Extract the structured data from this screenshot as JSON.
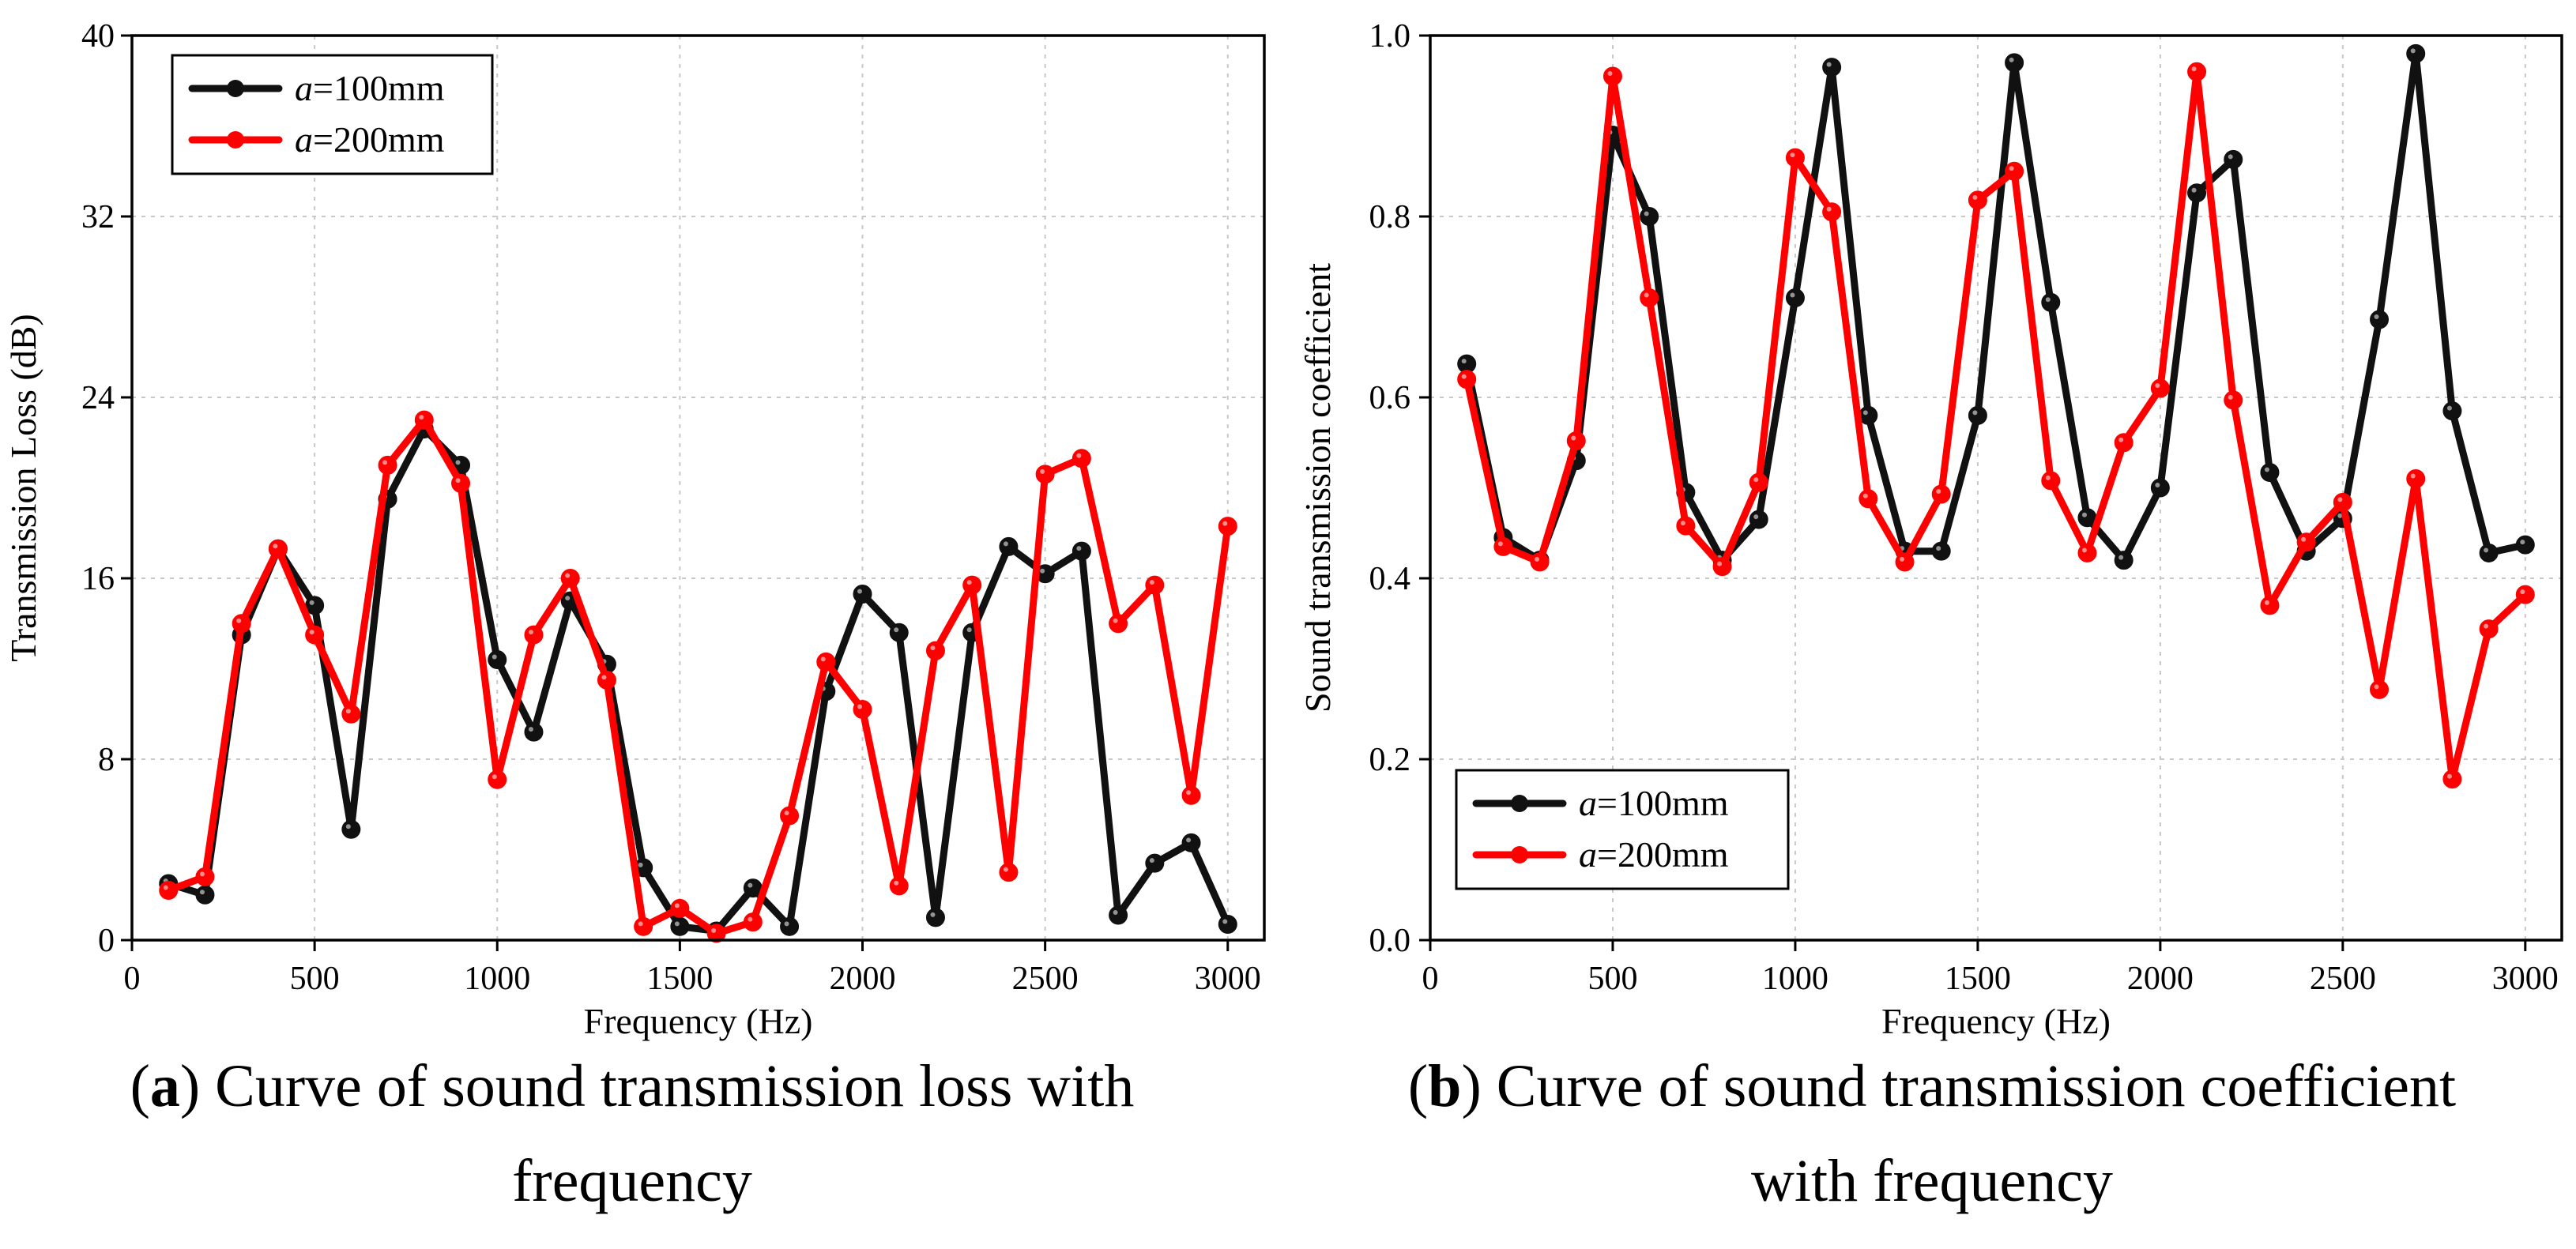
{
  "colors": {
    "series_a100": "#111111",
    "series_a200": "#ff0000"
  },
  "chart_data": [
    {
      "type": "line",
      "panel": "a",
      "caption_letter": "a",
      "caption_line1": ") Curve of sound transmission loss with",
      "caption_line2": "frequency",
      "xlabel": "Frequency (Hz)",
      "ylabel": "Transmission Loss (dB)",
      "xlim": [
        0,
        3100
      ],
      "ylim": [
        0,
        40
      ],
      "xticks": [
        0,
        500,
        1000,
        1500,
        2000,
        2500,
        3000
      ],
      "yticks": [
        0,
        8,
        16,
        24,
        32,
        40
      ],
      "grid": true,
      "legend_position": "top-left",
      "x": [
        100,
        200,
        300,
        400,
        500,
        600,
        700,
        800,
        900,
        1000,
        1100,
        1200,
        1300,
        1400,
        1500,
        1600,
        1700,
        1800,
        1900,
        2000,
        2100,
        2200,
        2300,
        2400,
        2500,
        2600,
        2700,
        2800,
        2900,
        3000
      ],
      "series": [
        {
          "name": "a=100mm",
          "name_italic": "a",
          "name_rest": "=100mm",
          "color": "#111111",
          "values": [
            2.5,
            2.0,
            13.5,
            17.3,
            14.8,
            4.9,
            19.5,
            22.6,
            21.0,
            12.4,
            9.2,
            15.0,
            12.2,
            3.2,
            0.6,
            0.4,
            2.3,
            0.6,
            11.0,
            15.3,
            13.6,
            1.0,
            13.6,
            17.4,
            16.2,
            17.2,
            1.1,
            3.4,
            4.3,
            0.7
          ]
        },
        {
          "name": "a=200mm",
          "name_italic": "a",
          "name_rest": "=200mm",
          "color": "#ff0000",
          "values": [
            2.2,
            2.8,
            14.0,
            17.3,
            13.5,
            10.0,
            21.0,
            23.0,
            20.2,
            7.1,
            13.5,
            16.0,
            11.5,
            0.6,
            1.4,
            0.3,
            0.8,
            5.5,
            12.3,
            10.2,
            2.4,
            12.8,
            15.7,
            3.0,
            20.6,
            21.3,
            14.0,
            15.7,
            6.4,
            18.3
          ]
        }
      ]
    },
    {
      "type": "line",
      "panel": "b",
      "caption_letter": "b",
      "caption_line1": ") Curve of sound transmission coefficient",
      "caption_line2": "with frequency",
      "xlabel": "Frequency (Hz)",
      "ylabel": "Sound transmission coefficient",
      "xlim": [
        0,
        3100
      ],
      "ylim": [
        0,
        1.0
      ],
      "xticks": [
        0,
        500,
        1000,
        1500,
        2000,
        2500,
        3000
      ],
      "yticks": [
        0.0,
        0.2,
        0.4,
        0.6,
        0.8,
        1.0
      ],
      "ytick_labels": [
        "0.0",
        "0.2",
        "0.4",
        "0.6",
        "0.8",
        "1.0"
      ],
      "grid": true,
      "legend_position": "bottom-left",
      "x": [
        100,
        200,
        300,
        400,
        500,
        600,
        700,
        800,
        900,
        1000,
        1100,
        1200,
        1300,
        1400,
        1500,
        1600,
        1700,
        1800,
        1900,
        2000,
        2100,
        2200,
        2300,
        2400,
        2500,
        2600,
        2700,
        2800,
        2900,
        3000
      ],
      "series": [
        {
          "name": "a=100mm",
          "name_italic": "a",
          "name_rest": "=100mm",
          "color": "#111111",
          "values": [
            0.637,
            0.445,
            0.42,
            0.53,
            0.89,
            0.8,
            0.495,
            0.42,
            0.465,
            0.71,
            0.965,
            0.58,
            0.43,
            0.43,
            0.58,
            0.97,
            0.705,
            0.467,
            0.42,
            0.5,
            0.826,
            0.863,
            0.517,
            0.43,
            0.466,
            0.686,
            0.98,
            0.585,
            0.428,
            0.437
          ]
        },
        {
          "name": "a=200mm",
          "name_italic": "a",
          "name_rest": "=200mm",
          "color": "#ff0000",
          "values": [
            0.62,
            0.435,
            0.418,
            0.552,
            0.955,
            0.71,
            0.458,
            0.413,
            0.506,
            0.865,
            0.805,
            0.488,
            0.418,
            0.493,
            0.818,
            0.85,
            0.508,
            0.428,
            0.55,
            0.61,
            0.96,
            0.597,
            0.37,
            0.44,
            0.484,
            0.277,
            0.51,
            0.178,
            0.344,
            0.382
          ]
        }
      ]
    }
  ]
}
